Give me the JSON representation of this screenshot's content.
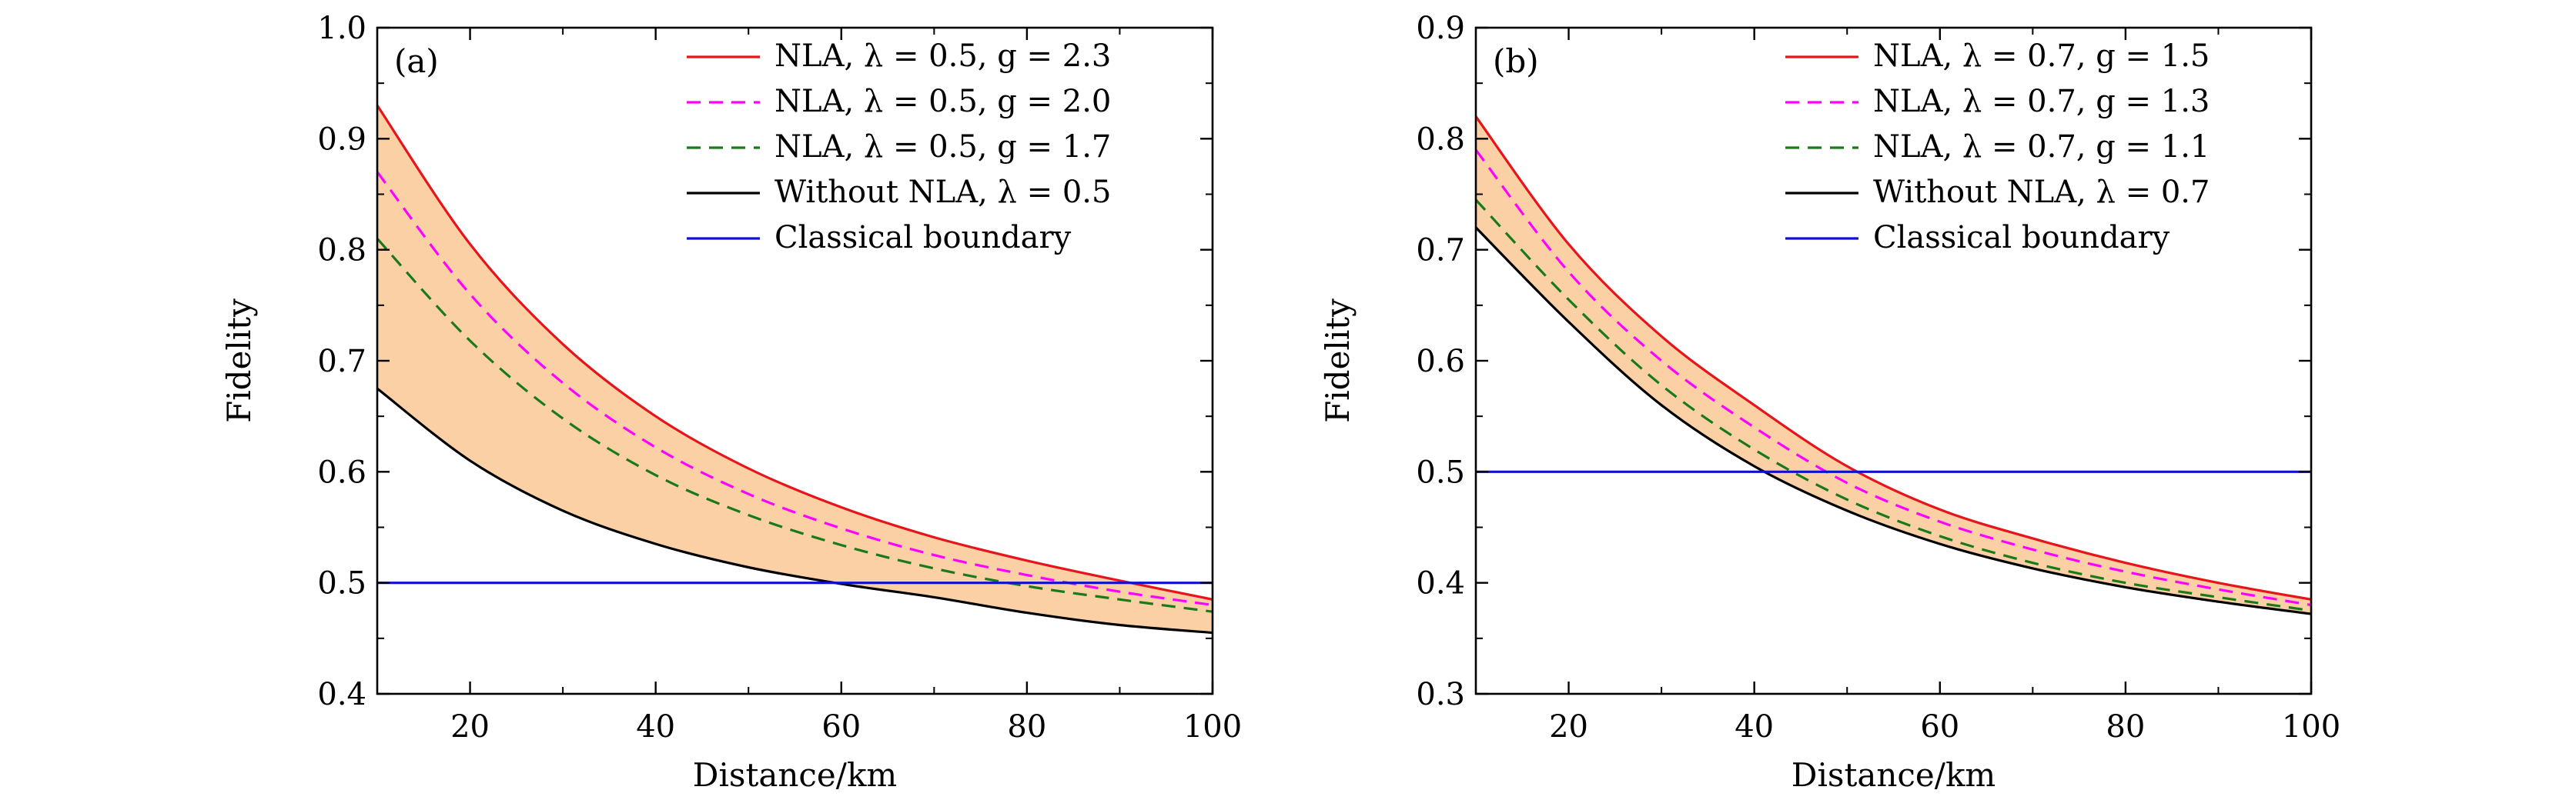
{
  "colors": {
    "nla_high": "#e8141c",
    "nla_mid": "#ff00ff",
    "nla_low": "#1a7a1a",
    "without": "#000000",
    "classical": "#1010d0",
    "band": "#fcd0a5"
  },
  "chart_data": [
    {
      "type": "line",
      "panel_label": "(a)",
      "xlabel": "Distance/km",
      "ylabel": "Fidelity",
      "xlim": [
        10,
        100
      ],
      "ylim": [
        0.4,
        1.0
      ],
      "xticks": [
        "20",
        "40",
        "60",
        "80",
        "100"
      ],
      "yticks": [
        "0.4",
        "0.5",
        "0.6",
        "0.7",
        "0.8",
        "0.9",
        "1.0"
      ],
      "grid": false,
      "legend_position": "top-right",
      "shaded_band": "between NLA, λ = 0.5, g = 2.3 and Without NLA, λ = 0.5",
      "x": [
        10,
        20,
        30,
        40,
        50,
        60,
        70,
        80,
        90,
        100
      ],
      "series": [
        {
          "name": "NLA, λ = 0.5, g = 2.3",
          "style": "solid",
          "color_key": "nla_high",
          "values": [
            0.93,
            0.805,
            0.715,
            0.65,
            0.603,
            0.568,
            0.541,
            0.52,
            0.502,
            0.485
          ]
        },
        {
          "name": "NLA, λ = 0.5, g = 2.0",
          "style": "dashed",
          "color_key": "nla_mid",
          "values": [
            0.87,
            0.76,
            0.68,
            0.622,
            0.58,
            0.549,
            0.525,
            0.507,
            0.492,
            0.48
          ]
        },
        {
          "name": "NLA, λ = 0.5, g = 1.7",
          "style": "dashed",
          "color_key": "nla_low",
          "values": [
            0.81,
            0.718,
            0.648,
            0.597,
            0.561,
            0.534,
            0.513,
            0.497,
            0.485,
            0.474
          ]
        },
        {
          "name": "Without NLA, λ = 0.5",
          "style": "solid",
          "color_key": "without",
          "values": [
            0.675,
            0.61,
            0.565,
            0.535,
            0.514,
            0.499,
            0.487,
            0.473,
            0.462,
            0.455
          ]
        },
        {
          "name": "Classical boundary",
          "style": "solid",
          "color_key": "classical",
          "values": [
            0.5,
            0.5,
            0.5,
            0.5,
            0.5,
            0.5,
            0.5,
            0.5,
            0.5,
            0.5
          ]
        }
      ]
    },
    {
      "type": "line",
      "panel_label": "(b)",
      "xlabel": "Distance/km",
      "ylabel": "Fidelity",
      "xlim": [
        10,
        100
      ],
      "ylim": [
        0.3,
        0.9
      ],
      "xticks": [
        "20",
        "40",
        "60",
        "80",
        "100"
      ],
      "yticks": [
        "0.3",
        "0.4",
        "0.5",
        "0.6",
        "0.7",
        "0.8",
        "0.9"
      ],
      "grid": false,
      "legend_position": "top-right",
      "shaded_band": "between NLA, λ = 0.7, g = 1.5 and Without NLA, λ = 0.7",
      "x": [
        10,
        20,
        30,
        40,
        50,
        60,
        70,
        80,
        90,
        100
      ],
      "series": [
        {
          "name": "NLA, λ = 0.7, g = 1.5",
          "style": "solid",
          "color_key": "nla_high",
          "values": [
            0.82,
            0.705,
            0.622,
            0.56,
            0.505,
            0.466,
            0.44,
            0.418,
            0.4,
            0.385
          ]
        },
        {
          "name": "NLA, λ = 0.7, g = 1.3",
          "style": "dashed",
          "color_key": "nla_mid",
          "values": [
            0.79,
            0.68,
            0.6,
            0.54,
            0.49,
            0.455,
            0.43,
            0.41,
            0.394,
            0.38
          ]
        },
        {
          "name": "NLA, λ = 0.7, g = 1.1",
          "style": "dashed",
          "color_key": "nla_low",
          "values": [
            0.745,
            0.655,
            0.578,
            0.52,
            0.475,
            0.442,
            0.418,
            0.4,
            0.387,
            0.375
          ]
        },
        {
          "name": "Without NLA, λ = 0.7",
          "style": "solid",
          "color_key": "without",
          "values": [
            0.72,
            0.635,
            0.56,
            0.505,
            0.465,
            0.435,
            0.413,
            0.396,
            0.383,
            0.372
          ]
        },
        {
          "name": "Classical boundary",
          "style": "solid",
          "color_key": "classical",
          "values": [
            0.5,
            0.5,
            0.5,
            0.5,
            0.5,
            0.5,
            0.5,
            0.5,
            0.5,
            0.5
          ]
        }
      ]
    }
  ]
}
